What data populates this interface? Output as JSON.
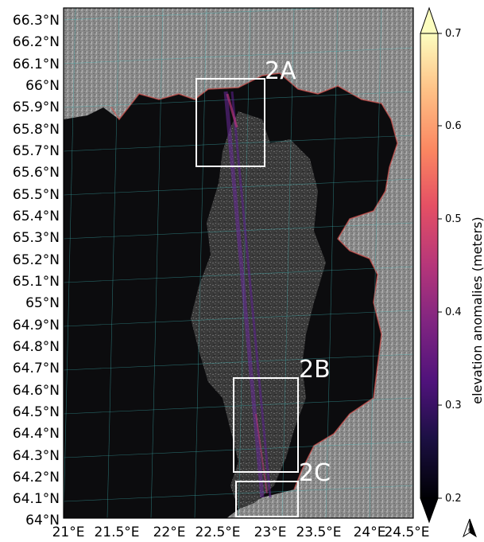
{
  "map": {
    "lat_labels": [
      "66.3°N",
      "66.2°N",
      "66.1°N",
      "66°N",
      "65.9°N",
      "65.8°N",
      "65.7°N",
      "65.6°N",
      "65.5°N",
      "65.4°N",
      "65.3°N",
      "65.2°N",
      "65.1°N",
      "65°N",
      "64.9°N",
      "64.8°N",
      "64.7°N",
      "64.6°N",
      "64.5°N",
      "64.4°N",
      "64.3°N",
      "64.2°N",
      "64.1°N",
      "64°N"
    ],
    "lon_labels": [
      "21°E",
      "21.5°E",
      "22°E",
      "22.5°E",
      "23°E",
      "23.5°E",
      "24°E",
      "24.5°E"
    ],
    "regions": [
      {
        "label": "2A"
      },
      {
        "label": "2B"
      },
      {
        "label": "2C"
      }
    ],
    "colorbar": {
      "label": "elevation anomalies (meters)",
      "ticks": [
        "0.7",
        "0.6",
        "0.5",
        "0.4",
        "0.3",
        "0.2"
      ],
      "min": 0.2,
      "max": 0.7,
      "colormap": "magma",
      "extend": "both"
    },
    "north_arrow": {
      "label": "N"
    },
    "colors": {
      "water": "#0b0b0d",
      "land": "#8c8c8c",
      "ice": "#4a4a4a",
      "coast_anomaly": "#d9534f",
      "track": "#6a2a9a",
      "grid": "#3fb8b8",
      "box": "#ffffff"
    }
  }
}
